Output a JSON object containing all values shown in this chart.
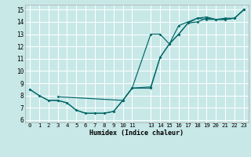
{
  "xlabel": "Humidex (Indice chaleur)",
  "bg_color": "#c8e8e8",
  "grid_color": "#ffffff",
  "line_color": "#006666",
  "xlim": [
    -0.5,
    23.5
  ],
  "ylim": [
    5.8,
    15.4
  ],
  "xticks": [
    0,
    1,
    2,
    3,
    4,
    5,
    6,
    7,
    8,
    9,
    10,
    11,
    13,
    14,
    15,
    16,
    17,
    18,
    19,
    20,
    21,
    22,
    23
  ],
  "yticks": [
    6,
    7,
    8,
    9,
    10,
    11,
    12,
    13,
    14,
    15
  ],
  "line1_x": [
    0,
    1,
    2,
    3,
    4,
    5,
    6,
    7,
    8,
    9,
    10,
    11,
    13,
    14,
    15,
    16,
    17,
    18,
    19,
    20,
    21,
    22,
    23
  ],
  "line1_y": [
    8.5,
    8.0,
    7.6,
    7.6,
    7.4,
    6.8,
    6.55,
    6.55,
    6.55,
    6.7,
    7.6,
    8.6,
    13.0,
    13.0,
    12.2,
    13.7,
    14.0,
    14.3,
    14.2,
    14.2,
    14.3,
    14.3,
    15.0
  ],
  "line2_x": [
    0,
    1,
    2,
    3,
    4,
    5,
    6,
    7,
    8,
    9,
    10,
    11,
    13,
    14,
    15,
    16,
    17,
    18,
    19,
    20,
    21,
    22,
    23
  ],
  "line2_y": [
    8.5,
    8.0,
    7.6,
    7.6,
    7.4,
    6.8,
    6.55,
    6.55,
    6.55,
    6.7,
    7.6,
    8.6,
    8.7,
    11.1,
    12.2,
    13.0,
    13.9,
    14.0,
    14.3,
    14.2,
    14.2,
    14.3,
    15.0
  ],
  "line3_x": [
    3,
    10,
    11,
    13,
    14,
    15,
    16,
    17,
    18,
    19,
    20,
    21,
    22,
    23
  ],
  "line3_y": [
    7.9,
    7.6,
    8.6,
    8.6,
    11.1,
    12.2,
    13.0,
    13.9,
    14.3,
    14.4,
    14.2,
    14.2,
    14.3,
    15.0
  ]
}
